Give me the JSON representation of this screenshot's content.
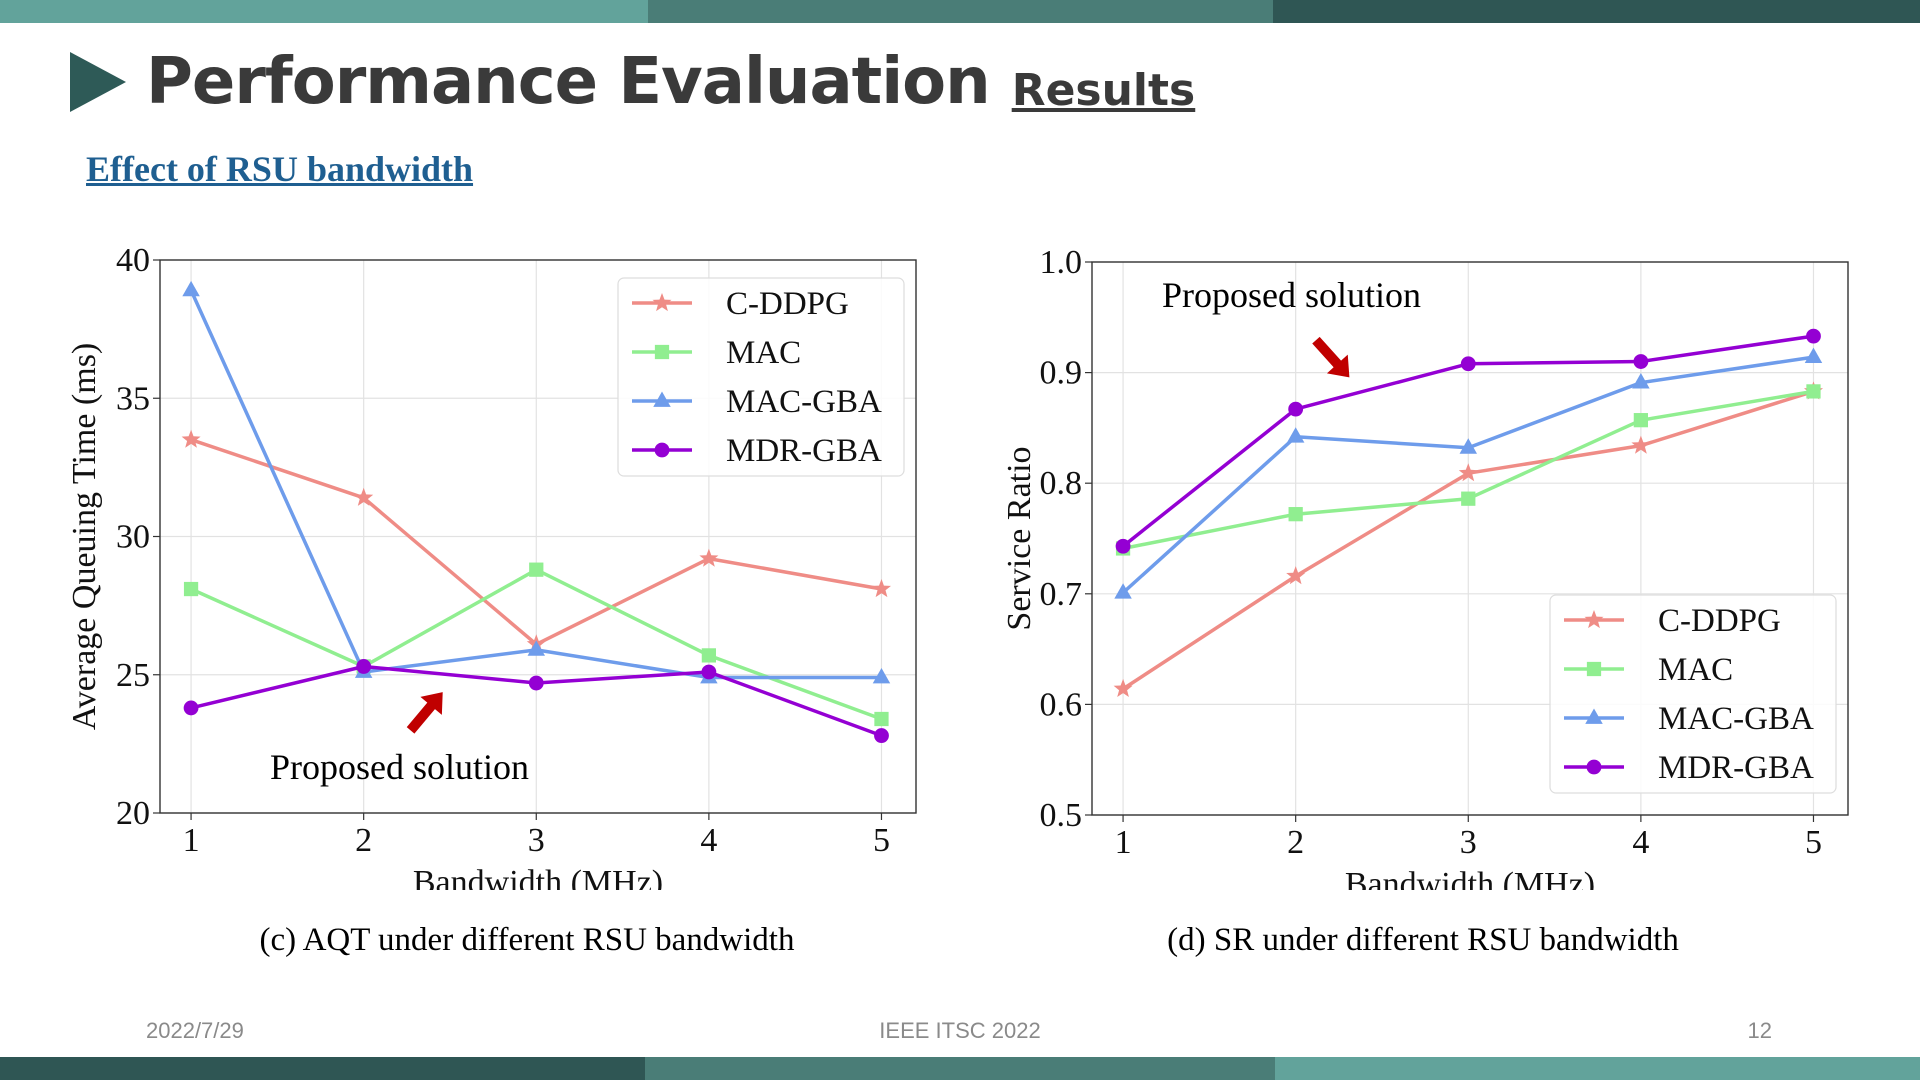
{
  "slide": {
    "title": "Performance Evaluation",
    "title_suffix": "Results",
    "subtitle": "Effect of RSU bandwidth",
    "footer_date": "2022/7/29",
    "footer_conference": "IEEE ITSC 2022",
    "page_number": "12"
  },
  "colors": {
    "band_light": "#62a39b",
    "band_mid": "#4a7d77",
    "band_dark": "#2f5654",
    "accent": "#2e5a57",
    "subtitle": "#1f5f91",
    "annotation_arrow": "#c00000"
  },
  "chart_data": [
    {
      "id": "c",
      "type": "line",
      "caption": "(c) AQT under different RSU bandwidth",
      "xlabel": "Bandwidth (MHz)",
      "ylabel": "Average Queuing Time (ms)",
      "x": [
        1,
        2,
        3,
        4,
        5
      ],
      "xlim": [
        0.82,
        5.2
      ],
      "ylim": [
        20,
        40
      ],
      "yticks": [
        20,
        25,
        30,
        35,
        40
      ],
      "grid": true,
      "legend_position": "top-right",
      "annotation": "Proposed solution",
      "series": [
        {
          "name": "C-DDPG",
          "color": "#ef8c86",
          "marker": "star",
          "values": [
            33.5,
            31.4,
            26.1,
            29.2,
            28.1
          ]
        },
        {
          "name": "MAC",
          "color": "#90ee90",
          "marker": "square",
          "values": [
            28.1,
            25.3,
            28.8,
            25.7,
            23.4
          ]
        },
        {
          "name": "MAC-GBA",
          "color": "#6e9ceb",
          "marker": "triangle",
          "values": [
            38.9,
            25.1,
            25.9,
            24.9,
            24.9
          ]
        },
        {
          "name": "MDR-GBA",
          "color": "#9400d3",
          "marker": "circle",
          "values": [
            23.8,
            25.3,
            24.7,
            25.1,
            22.8
          ]
        }
      ]
    },
    {
      "id": "d",
      "type": "line",
      "caption": "(d) SR under different RSU bandwidth",
      "xlabel": "Bandwidth (MHz)",
      "ylabel": "Service Ratio",
      "x": [
        1,
        2,
        3,
        4,
        5
      ],
      "xlim": [
        0.82,
        5.2
      ],
      "ylim": [
        0.5,
        1.0
      ],
      "yticks": [
        0.5,
        0.6,
        0.7,
        0.8,
        0.9,
        1.0
      ],
      "grid": true,
      "legend_position": "bottom-right",
      "annotation": "Proposed solution",
      "series": [
        {
          "name": "C-DDPG",
          "color": "#ef8c86",
          "marker": "star",
          "values": [
            0.614,
            0.716,
            0.809,
            0.834,
            0.883
          ]
        },
        {
          "name": "MAC",
          "color": "#90ee90",
          "marker": "square",
          "values": [
            0.741,
            0.772,
            0.786,
            0.857,
            0.883
          ]
        },
        {
          "name": "MAC-GBA",
          "color": "#6e9ceb",
          "marker": "triangle",
          "values": [
            0.701,
            0.842,
            0.832,
            0.891,
            0.914
          ]
        },
        {
          "name": "MDR-GBA",
          "color": "#9400d3",
          "marker": "circle",
          "values": [
            0.743,
            0.867,
            0.908,
            0.91,
            0.933
          ]
        }
      ]
    }
  ]
}
